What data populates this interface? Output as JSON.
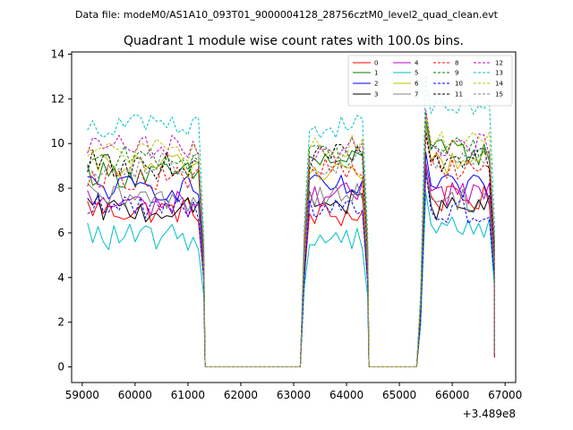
{
  "header": {
    "file_label": "Data file: modeM0/AS1A10_093T01_9000004128_28756cztM0_level2_quad_clean.evt",
    "title": "Quadrant 1 module wise count rates with 100.0s bins."
  },
  "chart_data": {
    "type": "line",
    "title": "Quadrant 1 module wise count rates with 100.0s bins.",
    "xlabel": "",
    "ylabel": "",
    "x_offset_label": "+3.489e8",
    "xlim": [
      58800,
      67200
    ],
    "ylim": [
      -0.7,
      14.1
    ],
    "x_ticks": [
      59000,
      60000,
      61000,
      62000,
      63000,
      64000,
      65000,
      66000,
      67000
    ],
    "y_ticks": [
      0,
      2,
      4,
      6,
      8,
      10,
      12,
      14
    ],
    "legend_position": "upper-right",
    "grid": false,
    "segments": [
      {
        "start": 59100,
        "end": 61300,
        "step": 100
      },
      {
        "start": 63200,
        "end": 64400,
        "step": 100
      },
      {
        "start": 65400,
        "end": 66800,
        "step": 100
      }
    ],
    "gaps": [
      {
        "start": 61400,
        "end": 63100
      },
      {
        "start": 64500,
        "end": 65200
      }
    ],
    "series": [
      {
        "name": "0",
        "color": "#ff0000",
        "dash": "solid",
        "base": [
          7.0,
          6.8,
          7.5
        ]
      },
      {
        "name": "1",
        "color": "#008000",
        "dash": "solid",
        "base": [
          8.6,
          9.2,
          9.6
        ]
      },
      {
        "name": "2",
        "color": "#0000ff",
        "dash": "solid",
        "base": [
          8.0,
          8.0,
          8.0
        ]
      },
      {
        "name": "3",
        "color": "#000000",
        "dash": "solid",
        "base": [
          7.0,
          7.3,
          7.1
        ]
      },
      {
        "name": "4",
        "color": "#bf00bf",
        "dash": "solid",
        "base": [
          7.3,
          7.7,
          7.8
        ]
      },
      {
        "name": "5",
        "color": "#00bfbf",
        "dash": "solid",
        "base": [
          5.8,
          5.8,
          6.3
        ]
      },
      {
        "name": "6",
        "color": "#bfbf00",
        "dash": "solid",
        "base": [
          9.0,
          8.8,
          9.2
        ]
      },
      {
        "name": "7",
        "color": "#808080",
        "dash": "solid",
        "base": [
          7.5,
          7.8,
          7.5
        ]
      },
      {
        "name": "8",
        "color": "#ff0000",
        "dash": "dashed",
        "base": [
          8.5,
          8.8,
          9.0
        ]
      },
      {
        "name": "9",
        "color": "#008000",
        "dash": "dashed",
        "base": [
          9.3,
          9.5,
          9.8
        ]
      },
      {
        "name": "10",
        "color": "#0000ff",
        "dash": "dashed",
        "base": [
          7.2,
          7.0,
          7.0
        ]
      },
      {
        "name": "11",
        "color": "#000000",
        "dash": "dashed",
        "base": [
          9.0,
          9.4,
          9.2
        ]
      },
      {
        "name": "12",
        "color": "#bf00bf",
        "dash": "dashed",
        "base": [
          9.8,
          9.8,
          10.0
        ]
      },
      {
        "name": "13",
        "color": "#00bfbf",
        "dash": "dashed",
        "base": [
          10.8,
          10.8,
          11.4
        ]
      },
      {
        "name": "14",
        "color": "#bfbf00",
        "dash": "dashed",
        "base": [
          9.6,
          9.8,
          10.1
        ]
      },
      {
        "name": "15",
        "color": "#808080",
        "dash": "dashed",
        "base": [
          9.0,
          9.1,
          9.4
        ]
      }
    ]
  }
}
